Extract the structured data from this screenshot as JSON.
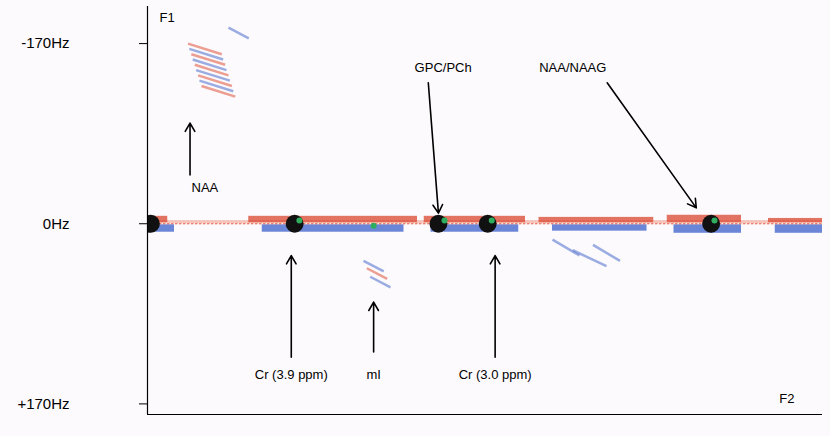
{
  "chart_data": {
    "type": "spectrum2d",
    "x_label": "F2",
    "y_label": "F1",
    "xlim": [
      0,
      100
    ],
    "ylim": [
      -205,
      180
    ],
    "yticks": [
      {
        "value": -170,
        "label": "-170Hz"
      },
      {
        "value": 0,
        "label": "0Hz"
      },
      {
        "value": 170,
        "label": "+170Hz"
      }
    ],
    "tick_labels": "y",
    "series": [
      {
        "type": "band",
        "color": "#f3b3a6",
        "x1": [
          0
        ],
        "x2": [
          100
        ],
        "f1_lo": [
          -3
        ],
        "f1_hi": [
          0
        ]
      },
      {
        "type": "band",
        "color": "#d9442e",
        "x1": [
          0,
          15,
          41,
          58,
          77,
          92
        ],
        "x2": [
          3,
          40,
          56,
          75,
          88,
          100
        ],
        "f1_lo": [
          -7,
          -7,
          -7,
          -6,
          -8,
          -5
        ],
        "f1_hi": [
          -1,
          -1,
          -1,
          -1,
          -1,
          -1
        ]
      },
      {
        "type": "band",
        "color": "#3b5fc9",
        "x1": [
          0,
          17,
          42,
          60,
          78,
          93
        ],
        "x2": [
          4,
          38,
          55,
          74,
          88,
          100
        ],
        "f1_lo": [
          1,
          1,
          1,
          1,
          1,
          1
        ],
        "f1_hi": [
          8,
          8,
          8,
          7,
          9,
          9
        ]
      },
      {
        "type": "line",
        "line_style": "dotted",
        "color": "#e8553f",
        "x": [
          0,
          100
        ],
        "f1": [
          0,
          0
        ]
      },
      {
        "type": "segment",
        "color": "#e0604a",
        "x1": [
          6,
          6.5,
          7,
          7.5,
          8
        ],
        "f1_1": [
          -170,
          -160,
          -150,
          -140,
          -130
        ],
        "x2": [
          11,
          11.5,
          12,
          12.5,
          13
        ],
        "f1_2": [
          -160,
          -150,
          -140,
          -130,
          -120
        ]
      },
      {
        "type": "segment",
        "color": "#5a78d0",
        "x1": [
          6.2,
          6.7,
          7.2,
          7.7,
          12,
          32,
          33,
          60,
          63,
          66
        ],
        "f1_1": [
          -165,
          -155,
          -145,
          -135,
          -185,
          35,
          50,
          15,
          25,
          20
        ],
        "x2": [
          11.2,
          11.7,
          12.2,
          12.7,
          15,
          35,
          36,
          64,
          68,
          70
        ],
        "f1_2": [
          -155,
          -145,
          -135,
          -125,
          -175,
          45,
          60,
          30,
          40,
          35
        ]
      },
      {
        "type": "segment",
        "color": "#e0604a",
        "x1": [
          32.5
        ],
        "f1_1": [
          42
        ],
        "x2": [
          35.5
        ],
        "f1_2": [
          52
        ]
      },
      {
        "type": "peak",
        "marker": "circle",
        "color": "#111111",
        "x": [
          0.5,
          21.8,
          43.1,
          50.4,
          83.5
        ],
        "f1": [
          0,
          0,
          0,
          0,
          0
        ]
      },
      {
        "type": "peak",
        "marker": "dot",
        "color": "#2fae5f",
        "x": [
          22.5,
          33.5,
          44,
          51,
          84
        ],
        "f1": [
          -3,
          2,
          -3,
          -3,
          -3
        ]
      }
    ],
    "annotations": [
      {
        "text": "NAA",
        "x": 8.5,
        "f1": -34,
        "arrow_from": [
          6.3,
          -46
        ],
        "arrow_to": [
          6.3,
          -95
        ]
      },
      {
        "text": "GPC/PCh",
        "x": 43.8,
        "f1": -147,
        "arrow_from": [
          41.6,
          -133
        ],
        "arrow_to": [
          43.1,
          -10
        ]
      },
      {
        "text": "NAA/NAAG",
        "x": 63,
        "f1": -147,
        "arrow_from": [
          68.1,
          -133
        ],
        "arrow_to": [
          81.3,
          -15
        ]
      },
      {
        "text": "Cr (3.9 ppm)",
        "x": 21.3,
        "f1": 143,
        "arrow_from": [
          21.3,
          126
        ],
        "arrow_to": [
          21.3,
          30
        ]
      },
      {
        "text": "mI",
        "x": 33.5,
        "f1": 143,
        "arrow_from": [
          33.5,
          121
        ],
        "arrow_to": [
          33.5,
          74
        ]
      },
      {
        "text": "Cr (3.0 ppm)",
        "x": 51.5,
        "f1": 143,
        "arrow_from": [
          51.5,
          126
        ],
        "arrow_to": [
          51.5,
          30
        ]
      }
    ]
  }
}
